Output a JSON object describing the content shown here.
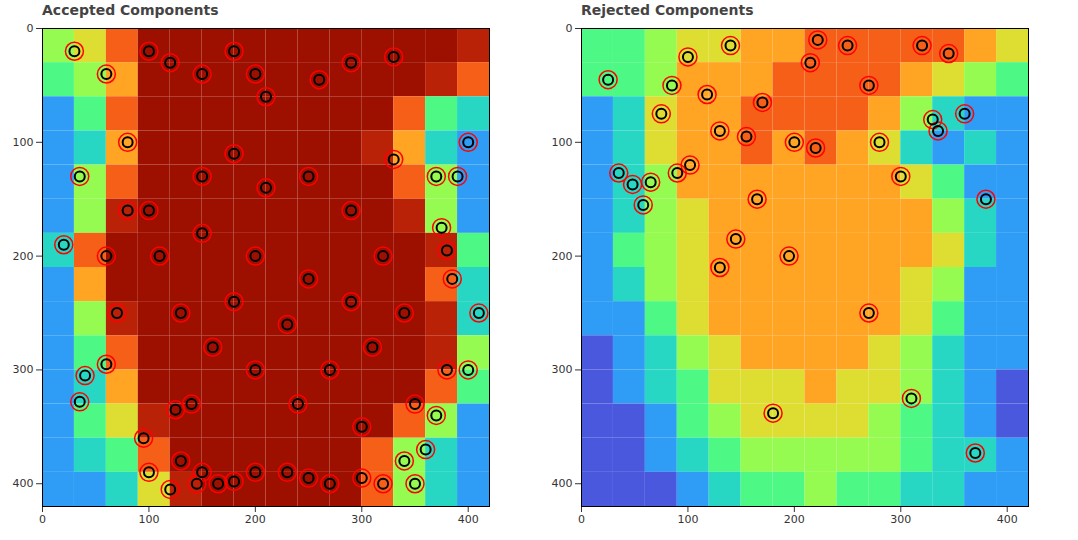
{
  "chart_data": [
    {
      "type": "heatmap",
      "title": "Accepted Components",
      "xlim": [
        0,
        420
      ],
      "ylim": [
        420,
        0
      ],
      "xticks": [
        0,
        100,
        200,
        300,
        400
      ],
      "yticks": [
        0,
        100,
        200,
        300,
        400
      ],
      "grid": false,
      "heatmap": {
        "x_edges": [
          0,
          30,
          60,
          90,
          120,
          150,
          180,
          210,
          240,
          270,
          300,
          330,
          360,
          390,
          420
        ],
        "y_edges": [
          0,
          30,
          60,
          90,
          120,
          150,
          180,
          210,
          240,
          270,
          300,
          330,
          360,
          390,
          420
        ],
        "zlim": [
          0,
          1
        ],
        "cells": [
          [
            0.5,
            0.6,
            0.8,
            0.95,
            0.95,
            0.95,
            0.95,
            0.95,
            0.95,
            0.95,
            0.95,
            0.95,
            0.95,
            0.9
          ],
          [
            0.4,
            0.5,
            0.7,
            0.95,
            0.95,
            0.95,
            0.95,
            0.95,
            0.95,
            0.95,
            0.95,
            0.95,
            0.9,
            0.8
          ],
          [
            0.2,
            0.4,
            0.8,
            0.95,
            0.95,
            0.95,
            0.95,
            0.95,
            0.95,
            0.95,
            0.95,
            0.8,
            0.4,
            0.3
          ],
          [
            0.2,
            0.3,
            0.7,
            0.95,
            0.95,
            0.95,
            0.95,
            0.95,
            0.95,
            0.95,
            0.9,
            0.7,
            0.3,
            0.2
          ],
          [
            0.2,
            0.5,
            0.8,
            0.95,
            0.95,
            0.95,
            0.95,
            0.95,
            0.95,
            0.95,
            0.95,
            0.8,
            0.5,
            0.2
          ],
          [
            0.2,
            0.5,
            0.9,
            0.95,
            0.95,
            0.95,
            0.95,
            0.95,
            0.95,
            0.95,
            0.95,
            0.9,
            0.5,
            0.2
          ],
          [
            0.3,
            0.8,
            0.95,
            0.95,
            0.95,
            0.95,
            0.95,
            0.95,
            0.95,
            0.95,
            0.95,
            0.95,
            0.9,
            0.4
          ],
          [
            0.2,
            0.7,
            0.95,
            0.95,
            0.95,
            0.95,
            0.95,
            0.95,
            0.95,
            0.95,
            0.95,
            0.95,
            0.8,
            0.3
          ],
          [
            0.2,
            0.5,
            0.9,
            0.95,
            0.95,
            0.95,
            0.95,
            0.95,
            0.95,
            0.95,
            0.95,
            0.95,
            0.9,
            0.3
          ],
          [
            0.2,
            0.4,
            0.8,
            0.95,
            0.95,
            0.95,
            0.95,
            0.95,
            0.95,
            0.95,
            0.95,
            0.95,
            0.9,
            0.5
          ],
          [
            0.2,
            0.3,
            0.7,
            0.95,
            0.95,
            0.95,
            0.95,
            0.95,
            0.95,
            0.95,
            0.95,
            0.95,
            0.8,
            0.4
          ],
          [
            0.2,
            0.4,
            0.6,
            0.9,
            0.95,
            0.95,
            0.95,
            0.95,
            0.95,
            0.95,
            0.95,
            0.8,
            0.5,
            0.2
          ],
          [
            0.2,
            0.3,
            0.4,
            0.8,
            0.95,
            0.95,
            0.95,
            0.95,
            0.95,
            0.95,
            0.8,
            0.5,
            0.3,
            0.2
          ],
          [
            0.2,
            0.2,
            0.3,
            0.6,
            0.9,
            0.95,
            0.95,
            0.95,
            0.95,
            0.95,
            0.8,
            0.5,
            0.3,
            0.2
          ]
        ]
      },
      "series": [
        {
          "color": "#ff0000",
          "marker": "circle",
          "x": [
            20,
            35,
            35,
            40,
            60,
            80,
            95,
            100,
            120,
            125,
            130,
            145,
            150,
            165,
            180,
            200,
            230,
            250,
            270,
            300,
            320,
            340,
            350,
            360,
            370,
            380,
            400,
            410,
            385,
            380,
            375,
            390,
            400,
            370,
            330,
            330,
            290,
            260,
            210,
            200,
            180,
            150,
            120,
            100,
            60,
            30,
            150,
            180,
            210,
            250,
            290,
            320,
            340,
            310,
            270,
            240,
            200,
            160,
            130,
            110,
            100,
            150,
            200,
            250,
            290,
            230,
            180,
            140,
            300,
            350,
            70,
            60,
            80
          ],
          "values": [
            190,
            130,
            328,
            305,
            295,
            100,
            360,
            390,
            405,
            335,
            380,
            400,
            390,
            400,
            398,
            390,
            390,
            395,
            400,
            395,
            400,
            380,
            400,
            370,
            340,
            300,
            300,
            250,
            220,
            195,
            175,
            130,
            100,
            130,
            115,
            25,
            30,
            45,
            60,
            40,
            20,
            40,
            30,
            20,
            40,
            20,
            130,
            110,
            140,
            130,
            160,
            200,
            250,
            280,
            300,
            330,
            300,
            280,
            250,
            200,
            160,
            180,
            200,
            220,
            240,
            260,
            240,
            330,
            350,
            330,
            250,
            200,
            160
          ]
        }
      ]
    },
    {
      "type": "heatmap",
      "title": "Rejected Components",
      "xlim": [
        0,
        420
      ],
      "ylim": [
        420,
        0
      ],
      "xticks": [
        0,
        100,
        200,
        300,
        400
      ],
      "yticks": [
        0,
        100,
        200,
        300,
        400
      ],
      "grid": false,
      "heatmap": {
        "x_edges": [
          0,
          30,
          60,
          90,
          120,
          150,
          180,
          210,
          240,
          270,
          300,
          330,
          360,
          390,
          420
        ],
        "y_edges": [
          0,
          30,
          60,
          90,
          120,
          150,
          180,
          210,
          240,
          270,
          300,
          330,
          360,
          390,
          420
        ],
        "zlim": [
          0,
          1
        ],
        "cells": [
          [
            0.4,
            0.4,
            0.5,
            0.6,
            0.6,
            0.7,
            0.7,
            0.8,
            0.8,
            0.8,
            0.8,
            0.8,
            0.7,
            0.6
          ],
          [
            0.4,
            0.4,
            0.5,
            0.7,
            0.7,
            0.7,
            0.8,
            0.8,
            0.8,
            0.8,
            0.7,
            0.6,
            0.5,
            0.4
          ],
          [
            0.2,
            0.3,
            0.6,
            0.7,
            0.7,
            0.8,
            0.8,
            0.8,
            0.8,
            0.7,
            0.5,
            0.3,
            0.2,
            0.2
          ],
          [
            0.2,
            0.3,
            0.6,
            0.7,
            0.7,
            0.8,
            0.7,
            0.8,
            0.7,
            0.6,
            0.3,
            0.2,
            0.3,
            0.2
          ],
          [
            0.2,
            0.3,
            0.5,
            0.7,
            0.7,
            0.7,
            0.7,
            0.7,
            0.7,
            0.7,
            0.6,
            0.4,
            0.2,
            0.2
          ],
          [
            0.2,
            0.3,
            0.5,
            0.6,
            0.7,
            0.7,
            0.7,
            0.7,
            0.7,
            0.7,
            0.7,
            0.5,
            0.3,
            0.2
          ],
          [
            0.2,
            0.4,
            0.5,
            0.6,
            0.7,
            0.7,
            0.7,
            0.7,
            0.7,
            0.7,
            0.7,
            0.6,
            0.3,
            0.2
          ],
          [
            0.2,
            0.3,
            0.5,
            0.6,
            0.7,
            0.7,
            0.7,
            0.7,
            0.7,
            0.7,
            0.6,
            0.5,
            0.2,
            0.2
          ],
          [
            0.2,
            0.2,
            0.4,
            0.6,
            0.7,
            0.7,
            0.7,
            0.7,
            0.7,
            0.7,
            0.6,
            0.4,
            0.2,
            0.2
          ],
          [
            0.1,
            0.2,
            0.3,
            0.5,
            0.6,
            0.7,
            0.7,
            0.7,
            0.7,
            0.6,
            0.5,
            0.3,
            0.2,
            0.2
          ],
          [
            0.1,
            0.2,
            0.3,
            0.4,
            0.6,
            0.6,
            0.6,
            0.7,
            0.6,
            0.6,
            0.5,
            0.3,
            0.2,
            0.1
          ],
          [
            0.1,
            0.1,
            0.2,
            0.4,
            0.5,
            0.6,
            0.6,
            0.6,
            0.6,
            0.5,
            0.4,
            0.3,
            0.2,
            0.1
          ],
          [
            0.1,
            0.1,
            0.2,
            0.3,
            0.4,
            0.5,
            0.5,
            0.5,
            0.5,
            0.5,
            0.4,
            0.3,
            0.3,
            0.2
          ],
          [
            0.1,
            0.1,
            0.1,
            0.2,
            0.3,
            0.4,
            0.4,
            0.5,
            0.4,
            0.4,
            0.3,
            0.3,
            0.2,
            0.2
          ]
        ]
      },
      "series": [
        {
          "color": "#ff0000",
          "marker": "circle",
          "x": [
            25,
            35,
            48,
            58,
            75,
            90,
            100,
            118,
            130,
            140,
            145,
            130,
            170,
            165,
            195,
            180,
            215,
            222,
            250,
            320,
            345,
            270,
            280,
            300,
            330,
            335,
            360,
            380,
            270,
            310,
            370,
            220,
            200,
            155,
            102,
            65,
            85
          ],
          "values": [
            45,
            127,
            137,
            155,
            75,
            127,
            25,
            58,
            90,
            15,
            185,
            210,
            65,
            150,
            200,
            338,
            30,
            10,
            15,
            15,
            22,
            50,
            100,
            130,
            80,
            90,
            75,
            150,
            250,
            325,
            373,
            105,
            100,
            95,
            120,
            135,
            50
          ]
        }
      ]
    }
  ]
}
